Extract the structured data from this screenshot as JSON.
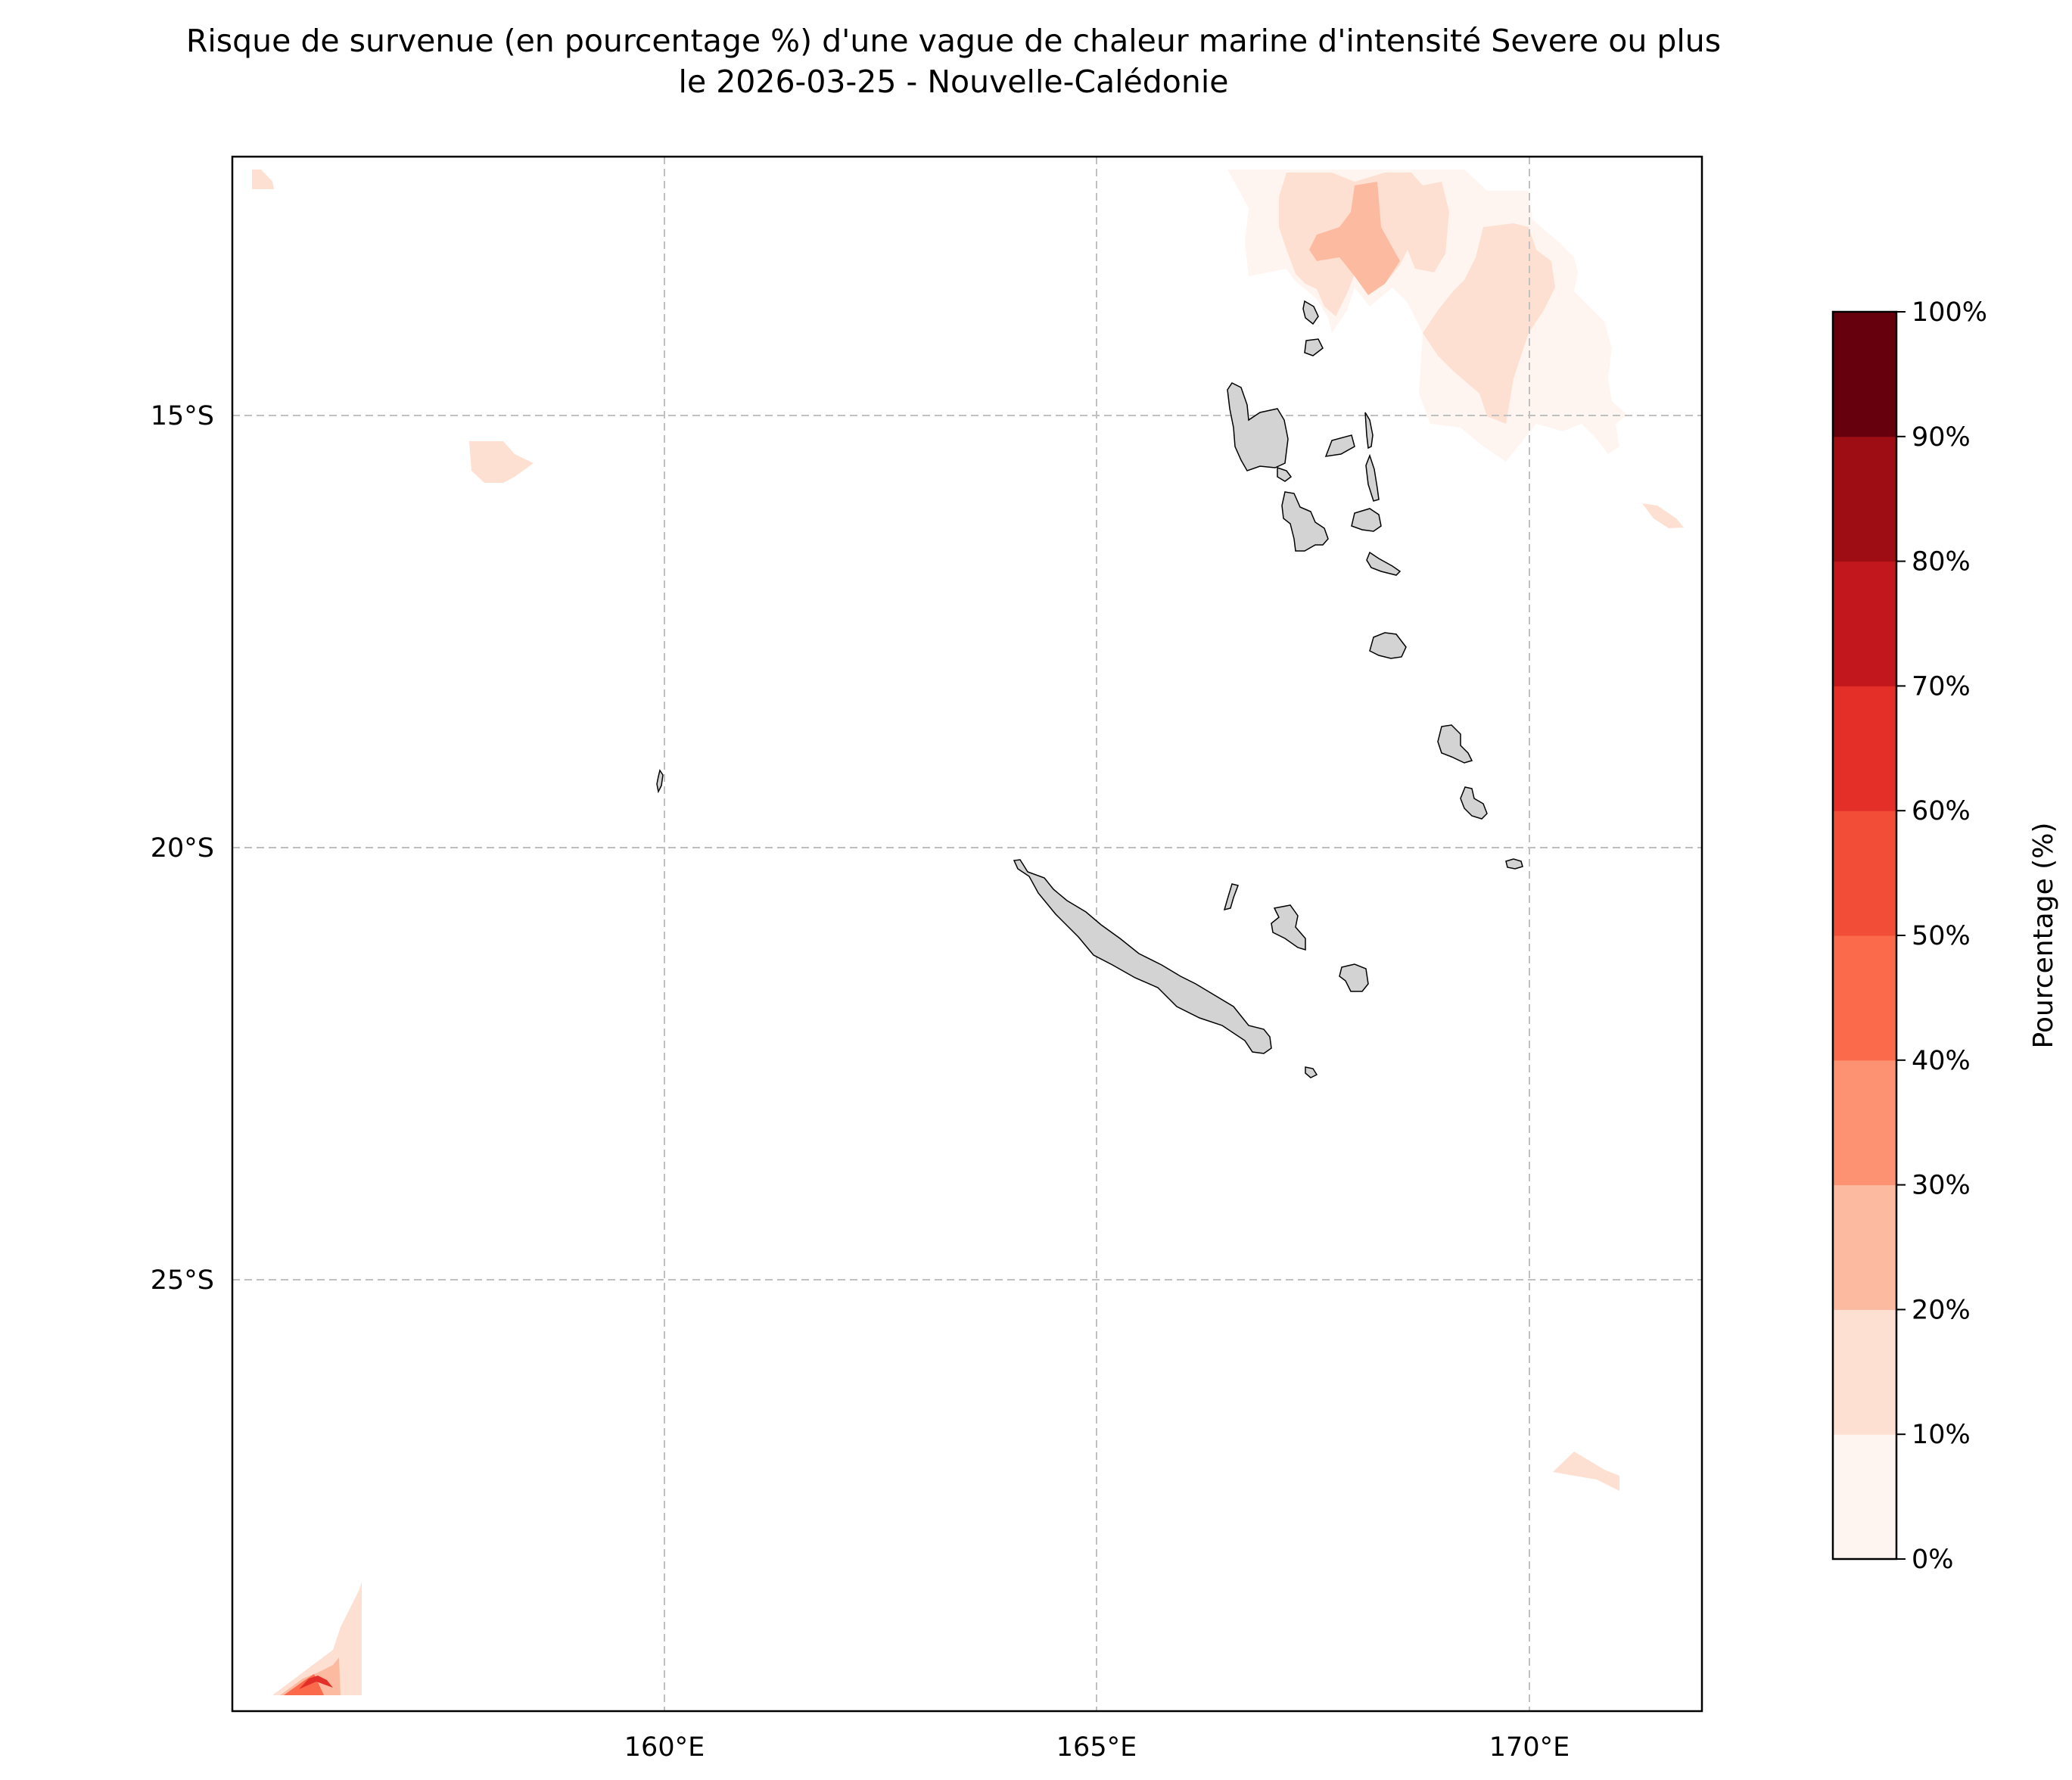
{
  "title": {
    "line1": "Risque de survenue (en pourcentage %) d'une vague de chaleur marine d'intensité Severe ou plus",
    "line2": "le 2026-03-25 - Nouvelle-Calédonie"
  },
  "map": {
    "region": "Nouvelle-Calédonie",
    "lon_range": [
      155,
      172
    ],
    "lat_range": [
      -30,
      -12
    ],
    "lon_ticks": [
      {
        "value": 160,
        "label": "160°E"
      },
      {
        "value": 165,
        "label": "165°E"
      },
      {
        "value": 170,
        "label": "170°E"
      }
    ],
    "lat_ticks": [
      {
        "value": -15,
        "label": "15°S"
      },
      {
        "value": -20,
        "label": "20°S"
      },
      {
        "value": -25,
        "label": "25°S"
      }
    ],
    "gridlines": true,
    "land_color": "#d3d3d3",
    "coast_color": "#000000"
  },
  "colorbar": {
    "label": "Pourcentage (%)",
    "ticks": [
      "0%",
      "10%",
      "20%",
      "30%",
      "40%",
      "50%",
      "60%",
      "70%",
      "80%",
      "90%",
      "100%"
    ],
    "colors": [
      "#fff5f0",
      "#fee0d2",
      "#fcbba1",
      "#fc9272",
      "#fb6a4a",
      "#f14d37",
      "#e32f27",
      "#c2171c",
      "#9e0d14",
      "#67000d"
    ]
  }
}
